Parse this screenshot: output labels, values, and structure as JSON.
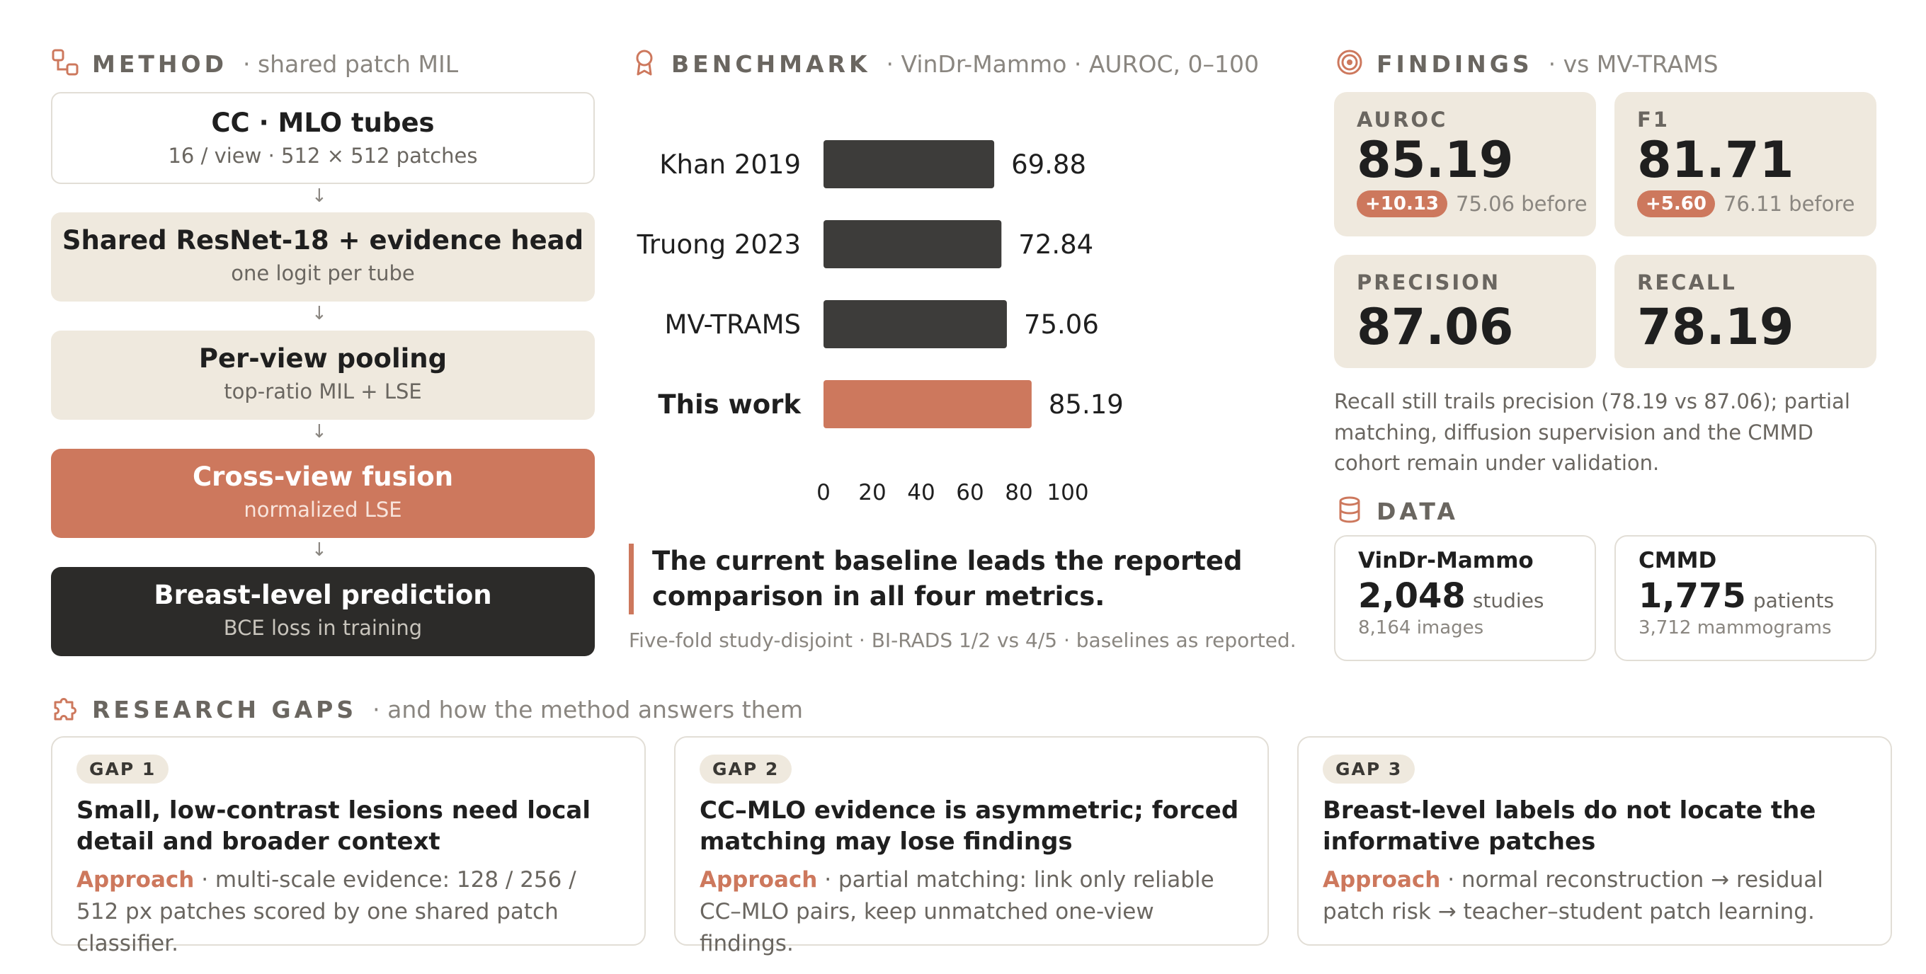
{
  "method": {
    "title": "METHOD",
    "subtitle": "· shared patch MIL",
    "steps": [
      {
        "title": "CC · MLO tubes",
        "sub": "16 / view · 512 × 512 patches"
      },
      {
        "title": "Shared ResNet-18 + evidence head",
        "sub": "one logit per tube"
      },
      {
        "title": "Per-view pooling",
        "sub": "top-ratio MIL + LSE"
      },
      {
        "title": "Cross-view fusion",
        "sub": "normalized LSE"
      },
      {
        "title": "Breast-level prediction",
        "sub": "BCE loss in training"
      }
    ],
    "arrow": "↓"
  },
  "benchmark": {
    "title": "BENCHMARK",
    "subtitle": "· VinDr-Mammo · AUROC, 0–100",
    "callout": "The current baseline leads the reported comparison in all four metrics.",
    "footnote": "Five-fold study-disjoint · BI-RADS 1/2 vs 4/5 · baselines as reported."
  },
  "chart_data": {
    "type": "bar",
    "orientation": "horizontal",
    "categories": [
      "Khan 2019",
      "Truong 2023",
      "MV-TRAMS",
      "This work"
    ],
    "values": [
      69.88,
      72.84,
      75.06,
      85.19
    ],
    "highlight_index": 3,
    "xlim": [
      0,
      100
    ],
    "xticks": [
      0,
      20,
      40,
      60,
      80,
      100
    ],
    "grid": false,
    "colors": {
      "bar": "#3d3c3a",
      "highlight": "#cd785d"
    }
  },
  "findings": {
    "title": "FINDINGS",
    "subtitle": "· vs MV-TRAMS",
    "metrics": [
      {
        "label": "AUROC",
        "value": "85.19",
        "delta": "+10.13",
        "before": "75.06 before"
      },
      {
        "label": "F1",
        "value": "81.71",
        "delta": "+5.60",
        "before": "76.11 before"
      },
      {
        "label": "PRECISION",
        "value": "87.06"
      },
      {
        "label": "RECALL",
        "value": "78.19"
      }
    ],
    "note": "Recall still trails precision (78.19 vs 87.06); partial matching, diffusion supervision and the CMMD cohort remain under validation."
  },
  "data": {
    "title": "DATA",
    "cards": [
      {
        "name": "VinDr-Mammo",
        "num": "2,048",
        "unit": "studies",
        "sub": "8,164 images"
      },
      {
        "name": "CMMD",
        "num": "1,775",
        "unit": "patients",
        "sub": "3,712 mammograms"
      }
    ]
  },
  "gaps": {
    "title": "RESEARCH GAPS",
    "subtitle": "· and how the method answers them",
    "approach_label": "Approach",
    "items": [
      {
        "tag": "GAP 1",
        "title": "Small, low-contrast lesions need local detail and broader context",
        "approach": "· multi-scale evidence: 128 / 256 / 512 px patches scored by one shared patch classifier."
      },
      {
        "tag": "GAP 2",
        "title": "CC–MLO evidence is asymmetric; forced matching may lose findings",
        "approach": "· partial matching: link only reliable CC–MLO pairs, keep unmatched one-view findings."
      },
      {
        "tag": "GAP 3",
        "title": "Breast-level labels do not locate the informative patches",
        "approach": "· normal reconstruction → residual patch risk → teacher–student patch learning."
      }
    ]
  },
  "colors": {
    "accent": "#cd785d",
    "beige": "#efe9de",
    "dark": "#2c2b29"
  }
}
